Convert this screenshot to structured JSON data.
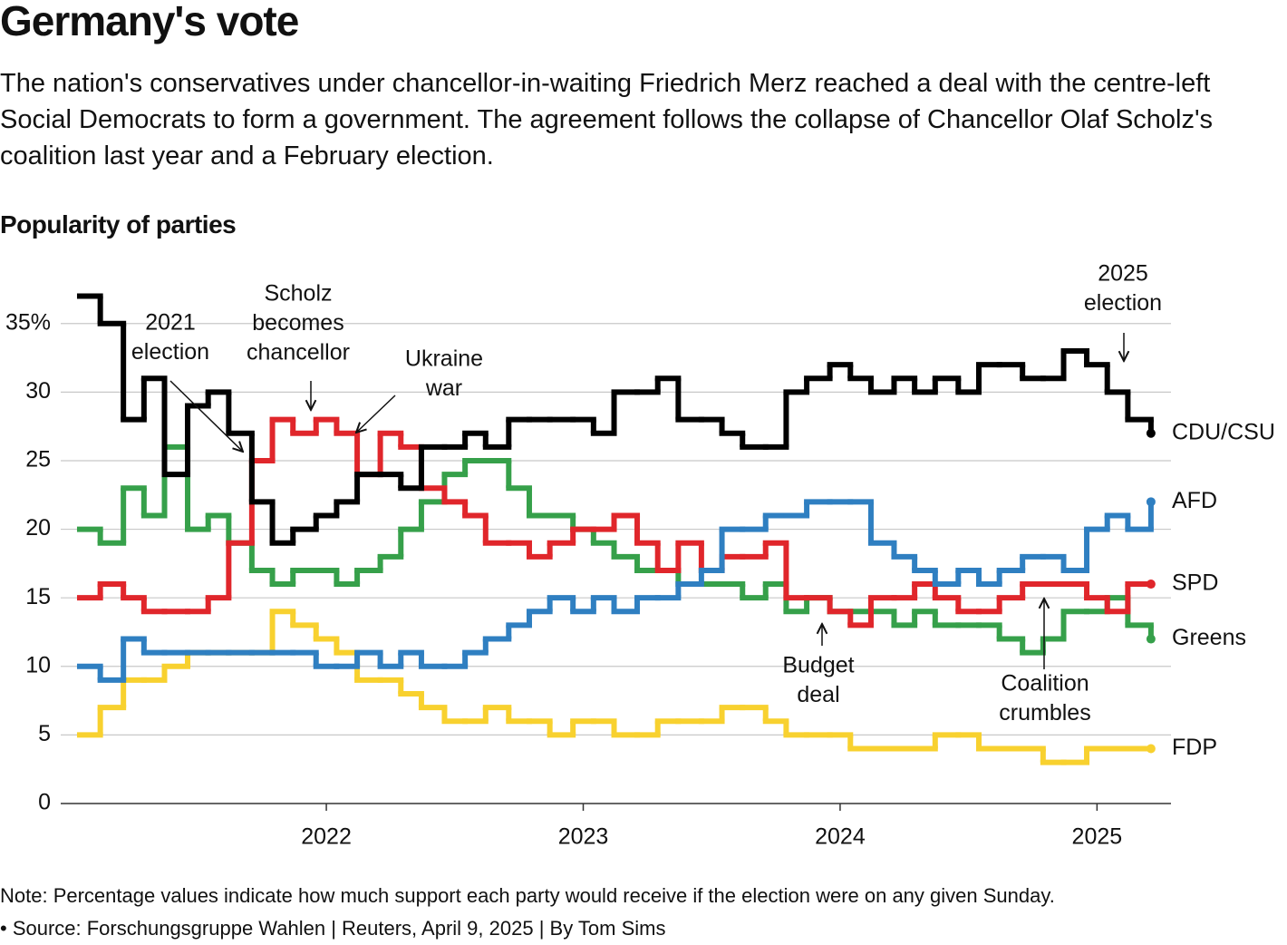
{
  "title": "Germany's vote",
  "subtitle": "The nation's conservatives under chancellor-in-waiting Friedrich Merz reached a deal with the centre-left Social Democrats to form a government. The agreement follows the collapse of Chancellor Olaf Scholz's coalition last year and a February election.",
  "note": "Note: Percentage values indicate how much support each party would receive if the election were on any given Sunday.",
  "source": "• Source: Forschungsgruppe Wahlen | Reuters, April 9, 2025 | By Tom Sims",
  "chart_data": {
    "type": "step",
    "title": "Popularity of parties",
    "x": [
      2021.04,
      2021.12,
      2021.21,
      2021.29,
      2021.37,
      2021.46,
      2021.54,
      2021.62,
      2021.71,
      2021.79,
      2021.87,
      2021.96,
      2022.04,
      2022.12,
      2022.21,
      2022.29,
      2022.37,
      2022.46,
      2022.54,
      2022.62,
      2022.71,
      2022.79,
      2022.87,
      2022.96,
      2023.04,
      2023.12,
      2023.21,
      2023.29,
      2023.37,
      2023.46,
      2023.54,
      2023.62,
      2023.71,
      2023.79,
      2023.87,
      2023.96,
      2024.04,
      2024.12,
      2024.21,
      2024.29,
      2024.37,
      2024.46,
      2024.54,
      2024.62,
      2024.71,
      2024.79,
      2024.87,
      2024.96,
      2025.04,
      2025.12,
      2025.21
    ],
    "series": [
      {
        "name": "CDU/CSU",
        "color": "#000000",
        "values": [
          37,
          35,
          28,
          31,
          24,
          29,
          30,
          27,
          22,
          19,
          20,
          21,
          22,
          24,
          24,
          23,
          26,
          26,
          27,
          26,
          28,
          28,
          28,
          28,
          27,
          30,
          30,
          31,
          28,
          28,
          27,
          26,
          26,
          30,
          31,
          32,
          31,
          30,
          31,
          30,
          31,
          30,
          32,
          32,
          31,
          31,
          33,
          32,
          30,
          28,
          27
        ]
      },
      {
        "name": "AFD",
        "color": "#2f7fc1",
        "values": [
          10,
          9,
          12,
          11,
          11,
          11,
          11,
          11,
          11,
          11,
          11,
          10,
          10,
          11,
          10,
          11,
          10,
          10,
          11,
          12,
          13,
          14,
          15,
          14,
          15,
          14,
          15,
          15,
          16,
          17,
          20,
          20,
          21,
          21,
          22,
          22,
          22,
          19,
          18,
          17,
          16,
          17,
          16,
          17,
          18,
          18,
          17,
          20,
          21,
          20,
          22
        ]
      },
      {
        "name": "SPD",
        "color": "#e0262b",
        "values": [
          15,
          16,
          15,
          14,
          14,
          14,
          15,
          19,
          25,
          28,
          27,
          28,
          27,
          24,
          27,
          26,
          23,
          22,
          21,
          19,
          19,
          18,
          19,
          20,
          20,
          21,
          19,
          17,
          19,
          17,
          18,
          18,
          19,
          15,
          15,
          14,
          13,
          15,
          15,
          16,
          15,
          14,
          14,
          15,
          16,
          16,
          16,
          15,
          14,
          16,
          16
        ]
      },
      {
        "name": "Greens",
        "color": "#36a04a",
        "values": [
          20,
          19,
          23,
          21,
          26,
          20,
          21,
          19,
          17,
          16,
          17,
          17,
          16,
          17,
          18,
          20,
          22,
          24,
          25,
          25,
          23,
          21,
          21,
          20,
          19,
          18,
          17,
          17,
          16,
          16,
          16,
          15,
          16,
          14,
          15,
          14,
          14,
          14,
          13,
          14,
          13,
          13,
          13,
          12,
          11,
          12,
          14,
          14,
          15,
          13,
          12
        ]
      },
      {
        "name": "FDP",
        "color": "#f8d12f",
        "values": [
          5,
          7,
          9,
          9,
          10,
          11,
          11,
          11,
          11,
          14,
          13,
          12,
          11,
          9,
          9,
          8,
          7,
          6,
          6,
          7,
          6,
          6,
          5,
          6,
          6,
          5,
          5,
          6,
          6,
          6,
          7,
          7,
          6,
          5,
          5,
          5,
          4,
          4,
          4,
          4,
          5,
          5,
          4,
          4,
          4,
          3,
          3,
          4,
          4,
          4,
          4
        ]
      }
    ],
    "xlim": [
      2020.966,
      2025.288
    ],
    "xticks": [
      2022,
      2023,
      2024,
      2025
    ],
    "ylim": [
      0,
      37.1
    ],
    "yticks": [
      0,
      5,
      10,
      15,
      20,
      25,
      30,
      {
        "value": 35,
        "label": "35%"
      }
    ],
    "grid": true,
    "annotations": [
      {
        "lines": [
          "2021",
          "election"
        ]
      },
      {
        "lines": [
          "Scholz",
          "becomes",
          "chancellor"
        ]
      },
      {
        "lines": [
          "Ukraine",
          "war"
        ]
      },
      {
        "lines": [
          "Budget",
          "deal"
        ]
      },
      {
        "lines": [
          "Coalition",
          "crumbles"
        ]
      },
      {
        "lines": [
          "2025",
          "election"
        ]
      }
    ]
  }
}
